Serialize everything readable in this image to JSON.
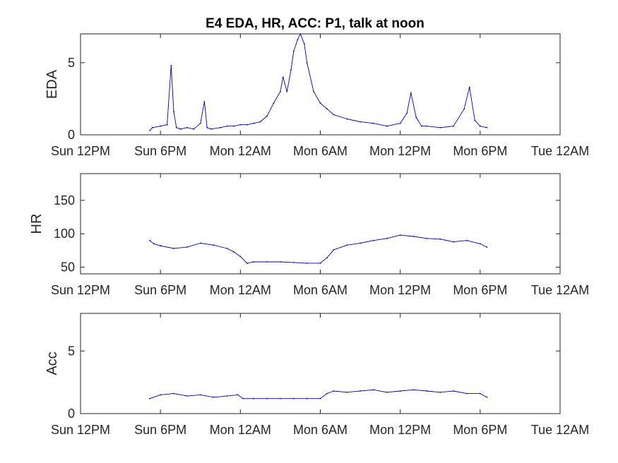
{
  "figure": {
    "title": "E4 EDA, HR, ACC: P1, talk at noon",
    "line_color": "#0000aa"
  },
  "chart_data": [
    {
      "type": "line",
      "ylabel": "EDA",
      "xlim": [
        0,
        36
      ],
      "x_unit": "hours after Sun 12PM",
      "ylim": [
        0,
        7
      ],
      "yticks": [
        0,
        5
      ],
      "x_ticks": [
        0,
        6,
        12,
        18,
        24,
        30,
        36
      ],
      "x_tick_labels": [
        "Sun 12PM",
        "Sun 6PM",
        "Mon 12AM",
        "Mon 6AM",
        "Mon 12PM",
        "Mon 6PM",
        "Tue 12AM"
      ],
      "series": [
        {
          "x": [
            5.2,
            5.4,
            6.0,
            6.5,
            6.8,
            7.0,
            7.2,
            7.5,
            8.0,
            8.5,
            9.0,
            9.3,
            9.5,
            9.8,
            10.5,
            11.0,
            11.5,
            12.0,
            12.5,
            13.0,
            13.5,
            14.0,
            14.5,
            15.0,
            15.2,
            15.5,
            15.8,
            16.0,
            16.3,
            16.5,
            16.8,
            17.0,
            17.5,
            18.0,
            18.5,
            19.0,
            20.0,
            21.0,
            22.0,
            23.0,
            24.0,
            24.5,
            24.8,
            25.2,
            25.6,
            26.0,
            27.0,
            28.0,
            28.8,
            29.2,
            29.6,
            30.0,
            30.5
          ],
          "y": [
            0.3,
            0.5,
            0.6,
            0.7,
            4.8,
            1.6,
            0.5,
            0.4,
            0.5,
            0.4,
            0.8,
            2.3,
            0.5,
            0.4,
            0.5,
            0.6,
            0.6,
            0.7,
            0.7,
            0.8,
            0.9,
            1.3,
            2.2,
            3.0,
            4.0,
            3.0,
            4.5,
            5.8,
            6.6,
            7.0,
            6.3,
            5.0,
            3.0,
            2.2,
            1.8,
            1.4,
            1.1,
            0.9,
            0.8,
            0.6,
            0.8,
            1.5,
            2.9,
            1.2,
            0.6,
            0.6,
            0.5,
            0.6,
            1.8,
            3.3,
            1.0,
            0.6,
            0.5
          ]
        }
      ]
    },
    {
      "type": "line",
      "ylabel": "HR",
      "xlim": [
        0,
        36
      ],
      "x_unit": "hours after Sun 12PM",
      "ylim": [
        40,
        190
      ],
      "yticks": [
        50,
        100,
        150
      ],
      "x_ticks": [
        0,
        6,
        12,
        18,
        24,
        30,
        36
      ],
      "x_tick_labels": [
        "Sun 12PM",
        "Sun 6PM",
        "Mon 12AM",
        "Mon 6AM",
        "Mon 12PM",
        "Mon 6PM",
        "Tue 12AM"
      ],
      "series": [
        {
          "x": [
            5.2,
            5.5,
            6.0,
            7.0,
            8.0,
            9.0,
            10.0,
            11.0,
            11.5,
            12.0,
            12.5,
            13.0,
            14.0,
            15.0,
            16.0,
            17.0,
            18.0,
            18.5,
            19.0,
            20.0,
            21.0,
            22.0,
            23.0,
            24.0,
            25.0,
            26.0,
            27.0,
            28.0,
            29.0,
            30.0,
            30.5
          ],
          "y": [
            90,
            85,
            82,
            78,
            80,
            86,
            83,
            78,
            73,
            66,
            56,
            58,
            58,
            58,
            57,
            56,
            56,
            64,
            76,
            83,
            86,
            90,
            93,
            98,
            96,
            93,
            92,
            88,
            90,
            85,
            80
          ]
        }
      ]
    },
    {
      "type": "line",
      "ylabel": "Acc",
      "xlim": [
        0,
        36
      ],
      "x_unit": "hours after Sun 12PM",
      "ylim": [
        0,
        8
      ],
      "yticks": [
        0,
        5
      ],
      "x_ticks": [
        0,
        6,
        12,
        18,
        24,
        30,
        36
      ],
      "x_tick_labels": [
        "Sun 12PM",
        "Sun 6PM",
        "Mon 12AM",
        "Mon 6AM",
        "Mon 12PM",
        "Mon 6PM",
        "Tue 12AM"
      ],
      "series": [
        {
          "x": [
            5.2,
            6.0,
            7.0,
            8.0,
            9.0,
            10.0,
            11.0,
            11.8,
            12.2,
            13.0,
            14.0,
            15.0,
            16.0,
            17.0,
            18.0,
            18.5,
            19.0,
            20.0,
            21.0,
            22.0,
            23.0,
            24.0,
            25.0,
            26.0,
            27.0,
            28.0,
            29.0,
            30.0,
            30.5
          ],
          "y": [
            1.2,
            1.5,
            1.6,
            1.4,
            1.5,
            1.3,
            1.4,
            1.5,
            1.2,
            1.2,
            1.2,
            1.2,
            1.2,
            1.2,
            1.2,
            1.6,
            1.8,
            1.7,
            1.8,
            1.9,
            1.7,
            1.8,
            1.9,
            1.8,
            1.7,
            1.8,
            1.6,
            1.6,
            1.3
          ]
        }
      ]
    }
  ]
}
